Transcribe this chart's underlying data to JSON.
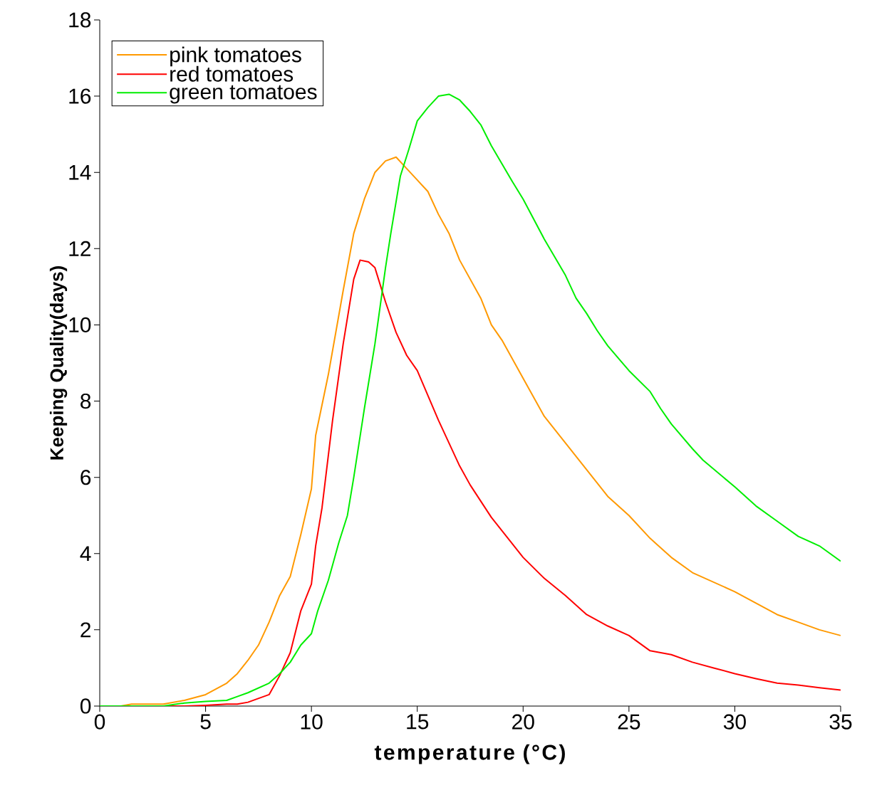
{
  "chart_data": {
    "type": "line",
    "xlabel": "temperature (°C)",
    "ylabel": "Keeping Quality(days)",
    "xlim": [
      0,
      35
    ],
    "ylim": [
      0,
      18
    ],
    "xticks": [
      0,
      5,
      10,
      15,
      20,
      25,
      30,
      35
    ],
    "yticks": [
      0,
      2,
      4,
      6,
      8,
      10,
      12,
      14,
      16,
      18
    ],
    "legend": "top left",
    "grid": false,
    "marker": "none",
    "line_style": "solid",
    "series": [
      {
        "name": "pink tomatoes",
        "color": "#ff9900",
        "x": [
          0,
          1,
          1.5,
          3,
          4,
          5,
          6,
          6.5,
          7,
          7.5,
          8,
          8.5,
          9,
          9.5,
          10,
          10.2,
          10.8,
          11.5,
          12,
          12.5,
          13,
          13.5,
          14,
          14.5,
          15,
          15.5,
          16,
          16.5,
          17,
          18,
          18.5,
          19,
          20,
          21,
          22,
          23,
          24,
          25,
          26,
          27,
          28,
          30,
          31,
          32,
          33,
          34,
          35
        ],
        "values": [
          0,
          0,
          0.05,
          0.05,
          0.15,
          0.3,
          0.6,
          0.85,
          1.2,
          1.6,
          2.2,
          2.9,
          3.4,
          4.5,
          5.7,
          7.1,
          8.7,
          10.9,
          12.4,
          13.3,
          14.0,
          14.3,
          14.4,
          14.1,
          13.8,
          13.5,
          12.9,
          12.4,
          11.7,
          10.7,
          10.0,
          9.6,
          8.6,
          7.6,
          6.9,
          6.2,
          5.5,
          5.0,
          4.4,
          3.9,
          3.5,
          3.0,
          2.7,
          2.4,
          2.2,
          2.0,
          1.85
        ]
      },
      {
        "name": "red tomatoes",
        "color": "#ff0000",
        "x": [
          0,
          4,
          5,
          6,
          6.5,
          7,
          8,
          8.5,
          9,
          9.5,
          10,
          10.2,
          10.5,
          11,
          11.5,
          12,
          12.3,
          12.7,
          13,
          13.5,
          14,
          14.5,
          15,
          16,
          17,
          17.5,
          18.5,
          19.5,
          20,
          21,
          22,
          23,
          24,
          25,
          26,
          27,
          28,
          29,
          30,
          31,
          32,
          33,
          34,
          35
        ],
        "values": [
          0,
          0,
          0.02,
          0.05,
          0.05,
          0.1,
          0.3,
          0.8,
          1.4,
          2.5,
          3.2,
          4.2,
          5.2,
          7.5,
          9.5,
          11.2,
          11.7,
          11.65,
          11.5,
          10.6,
          9.8,
          9.2,
          8.8,
          7.5,
          6.3,
          5.8,
          4.95,
          4.25,
          3.9,
          3.35,
          2.9,
          2.4,
          2.1,
          1.85,
          1.45,
          1.35,
          1.15,
          1.0,
          0.85,
          0.72,
          0.6,
          0.55,
          0.48,
          0.42
        ]
      },
      {
        "name": "green tomatoes",
        "color": "#00ee00",
        "x": [
          0,
          3,
          4,
          5,
          6,
          6.5,
          7,
          8,
          8.5,
          9,
          9.5,
          10,
          10.3,
          10.8,
          11.3,
          11.7,
          12,
          12.5,
          13,
          13.5,
          13.75,
          14.2,
          14.6,
          15,
          15.5,
          16,
          16.5,
          17,
          17.5,
          18,
          18.5,
          19.5,
          20,
          21,
          22,
          22.5,
          23,
          23.5,
          24,
          25,
          26,
          26.5,
          27,
          28,
          28.5,
          30,
          31,
          32,
          33,
          34,
          35
        ],
        "values": [
          0,
          0,
          0.08,
          0.12,
          0.15,
          0.25,
          0.35,
          0.6,
          0.85,
          1.15,
          1.6,
          1.9,
          2.5,
          3.3,
          4.3,
          5.0,
          6.0,
          7.8,
          9.5,
          11.5,
          12.4,
          13.9,
          14.6,
          15.35,
          15.7,
          16.0,
          16.05,
          15.9,
          15.6,
          15.25,
          14.7,
          13.75,
          13.3,
          12.25,
          11.3,
          10.7,
          10.3,
          9.85,
          9.45,
          8.8,
          8.25,
          7.8,
          7.4,
          6.75,
          6.45,
          5.75,
          5.25,
          4.85,
          4.45,
          4.2,
          3.8
        ]
      }
    ]
  }
}
